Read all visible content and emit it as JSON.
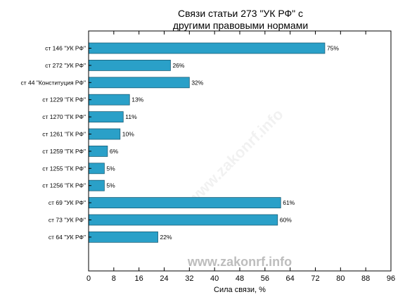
{
  "chart_data": {
    "type": "bar",
    "orientation": "horizontal",
    "title": "Связи статьи 273 \"УК РФ\" с\nдругими правовыми нормами",
    "xlabel": "Сила связи, %",
    "ylabel": "",
    "xlim": [
      0,
      96
    ],
    "xticks": [
      "0",
      "8",
      "16",
      "24",
      "32",
      "40",
      "48",
      "56",
      "64",
      "72",
      "80",
      "88",
      "96"
    ],
    "grid": false,
    "categories": [
      "ст 146 \"УК РФ\"",
      "ст 272 \"УК РФ\"",
      "ст 44 \"Конституция РФ\"",
      "ст 1229 \"ГК РФ\"",
      "ст 1270 \"ГК РФ\"",
      "ст 1261 \"ГК РФ\"",
      "ст 1259 \"ГК РФ\"",
      "ст 1255 \"ГК РФ\"",
      "ст 1256 \"ГК РФ\"",
      "ст 69 \"УК РФ\"",
      "ст 73 \"УК РФ\"",
      "ст 64 \"УК РФ\""
    ],
    "values": [
      75,
      26,
      32,
      13,
      11,
      10,
      6,
      5,
      5,
      61,
      60,
      22
    ],
    "value_labels": [
      "75%",
      "26%",
      "32%",
      "13%",
      "11%",
      "10%",
      "6%",
      "5%",
      "5%",
      "61%",
      "60%",
      "22%"
    ],
    "bar_color": "#2aa0c8",
    "bar_edge_color": "#1a5f78"
  },
  "watermark": {
    "text": "www.zakonrf.info",
    "diagonal_text": "www.zakonrf.info"
  }
}
